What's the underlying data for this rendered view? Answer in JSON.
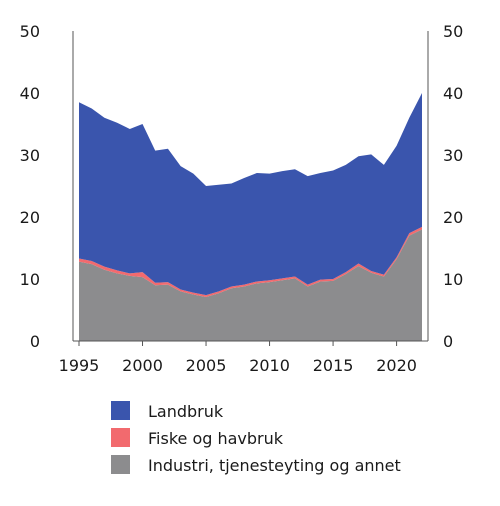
{
  "chart_data": {
    "type": "area",
    "stacked": true,
    "title": "",
    "xlabel": "",
    "ylabel": "",
    "x": [
      1995,
      1996,
      1997,
      1998,
      1999,
      2000,
      2001,
      2002,
      2003,
      2004,
      2005,
      2006,
      2007,
      2008,
      2009,
      2010,
      2011,
      2012,
      2013,
      2014,
      2015,
      2016,
      2017,
      2018,
      2019,
      2020,
      2021,
      2022
    ],
    "xlim": [
      1995,
      2022
    ],
    "ylim": [
      0,
      50
    ],
    "x_ticks": [
      "1995",
      "2000",
      "2005",
      "2010",
      "2015",
      "2020"
    ],
    "y_ticks": [
      "0",
      "10",
      "20",
      "30",
      "40",
      "50"
    ],
    "grid": false,
    "axes": "left-and-right",
    "legend_position": "bottom",
    "series": [
      {
        "name": "Industri, tjenesteyting og annet",
        "color": "#8c8c8e",
        "values": [
          12.8,
          12.4,
          11.5,
          10.9,
          10.5,
          10.3,
          9.0,
          9.1,
          8.0,
          7.5,
          7.1,
          7.7,
          8.5,
          8.8,
          9.3,
          9.5,
          9.8,
          10.1,
          8.8,
          9.6,
          9.7,
          10.8,
          12.1,
          11.0,
          10.4,
          13.2,
          17.0,
          18.0
        ]
      },
      {
        "name": "Fiske og havbruk",
        "color": "#f26a6e",
        "values": [
          0.5,
          0.5,
          0.5,
          0.5,
          0.4,
          0.8,
          0.4,
          0.4,
          0.3,
          0.3,
          0.3,
          0.3,
          0.3,
          0.3,
          0.3,
          0.3,
          0.3,
          0.3,
          0.3,
          0.3,
          0.3,
          0.3,
          0.4,
          0.3,
          0.3,
          0.3,
          0.4,
          0.4
        ]
      },
      {
        "name": "Landbruk",
        "color": "#3a55ad",
        "values": [
          25.2,
          24.6,
          24.0,
          23.8,
          23.3,
          23.9,
          21.3,
          21.5,
          19.9,
          19.2,
          17.6,
          17.2,
          16.6,
          17.2,
          17.5,
          17.2,
          17.3,
          17.3,
          17.5,
          17.2,
          17.5,
          17.3,
          17.3,
          18.8,
          17.7,
          18.0,
          18.6,
          21.6
        ]
      }
    ]
  }
}
